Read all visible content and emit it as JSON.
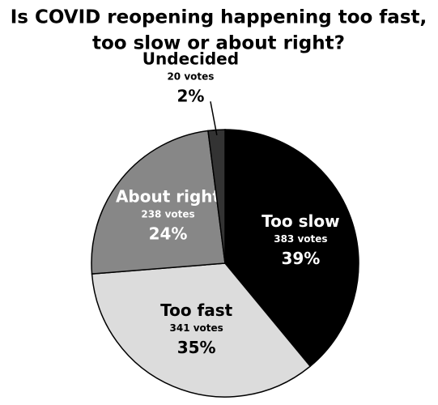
{
  "chart_data": {
    "type": "pie",
    "title": [
      "Is COVID reopening happening too fast,",
      "too slow or about right?"
    ],
    "categories": [
      "Too slow",
      "Too fast",
      "About right",
      "Undecided"
    ],
    "values": [
      383,
      341,
      238,
      20
    ],
    "value_labels": [
      "383 votes",
      "341 votes",
      "238 votes",
      "20 votes"
    ],
    "percent_labels": [
      "39%",
      "35%",
      "24%",
      "2%"
    ],
    "colors": [
      "#000000",
      "#dcdcdc",
      "#878787",
      "#333333"
    ]
  }
}
